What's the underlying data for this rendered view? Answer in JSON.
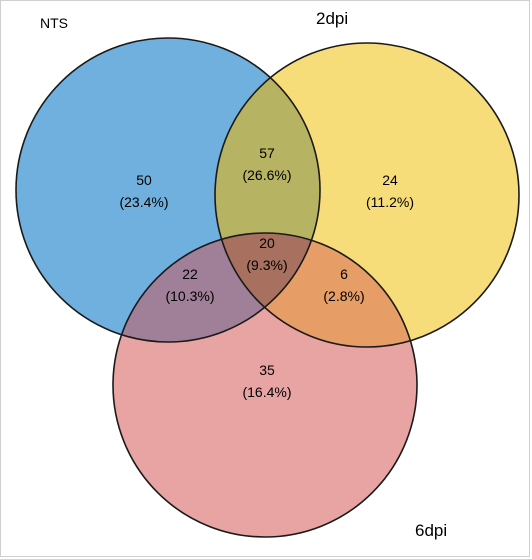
{
  "sets": [
    {
      "id": "nts",
      "label": "NTS",
      "color": "#6fb0de"
    },
    {
      "id": "2dpi",
      "label": "2dpi",
      "color": "#f7dc7a"
    },
    {
      "id": "6dpi",
      "label": "6dpi",
      "color": "#e8a3a3"
    }
  ],
  "regions": {
    "nts_only": {
      "count": "50",
      "percent": "(23.4%)"
    },
    "2dpi_only": {
      "count": "24",
      "percent": "(11.2%)"
    },
    "6dpi_only": {
      "count": "35",
      "percent": "(16.4%)"
    },
    "nts_2dpi": {
      "count": "57",
      "percent": "(26.6%)"
    },
    "nts_6dpi": {
      "count": "22",
      "percent": "(10.3%)"
    },
    "2dpi_6dpi": {
      "count": "6",
      "percent": "(2.8%)"
    },
    "all_three": {
      "count": "20",
      "percent": "(9.3%)"
    }
  },
  "colors": {
    "nts_2dpi": "#b6b462",
    "nts_6dpi": "#a07f98",
    "2dpi_6dpi": "#e79d66",
    "all_three": "#a8705e",
    "outline": "#1a1a1a"
  }
}
